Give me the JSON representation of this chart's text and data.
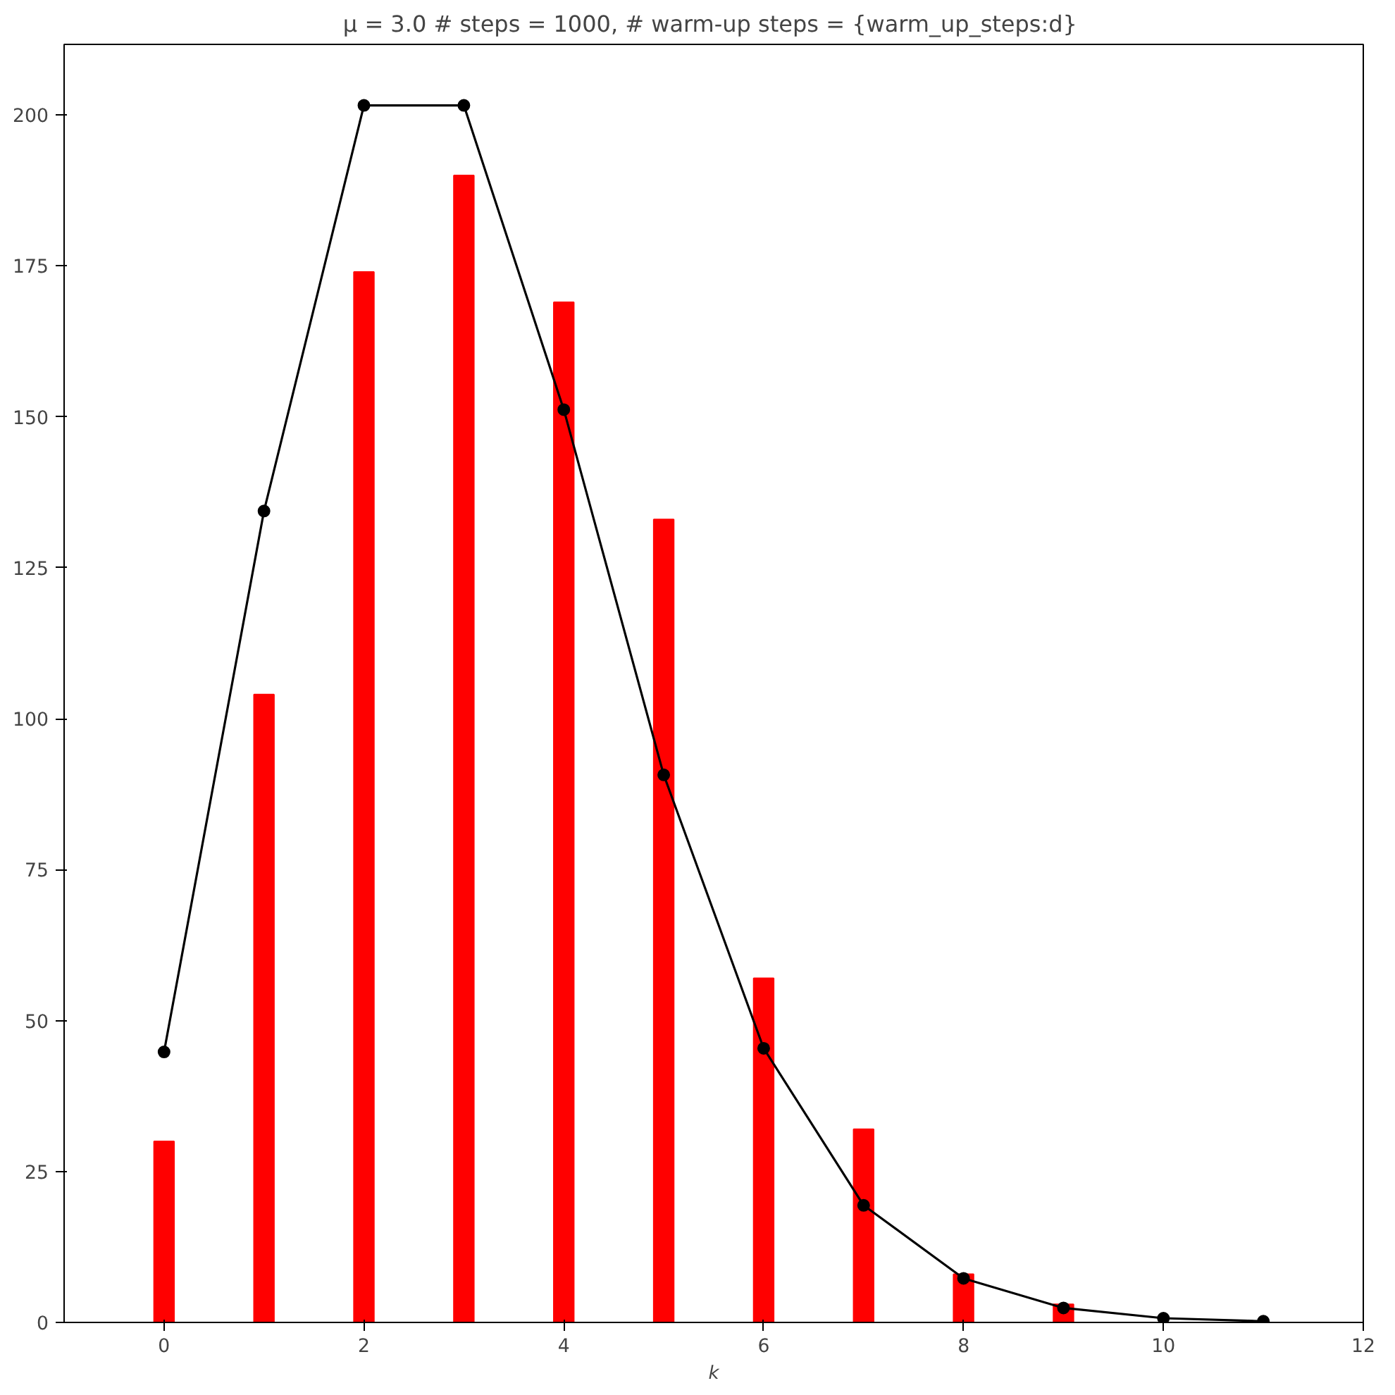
{
  "chart_data": {
    "type": "bar",
    "title": "μ = 3.0  # steps = 1000, # warm-up steps = {warm_up_steps:d}",
    "xlabel": "k",
    "series": [
      {
        "color": "#ff0000",
        "x": [
          0,
          1,
          2,
          3,
          4,
          5,
          6,
          7,
          8,
          9
        ],
        "values": [
          30,
          104,
          174,
          190,
          169,
          133,
          57,
          32,
          8,
          3
        ]
      },
      {
        "type": "line",
        "color": "#000000",
        "marker": "circle",
        "x": [
          0,
          1,
          2,
          3,
          4,
          5,
          6,
          7,
          8,
          9,
          10,
          11
        ],
        "values": [
          44.8,
          134.4,
          201.6,
          201.6,
          151.2,
          90.7,
          45.4,
          19.4,
          7.3,
          2.4,
          0.7,
          0.2
        ]
      }
    ],
    "xlim": [
      -1,
      12
    ],
    "ylim": [
      0,
      211.7
    ],
    "xticks": [
      0,
      2,
      4,
      6,
      8,
      10,
      12
    ],
    "yticks": [
      0,
      25,
      50,
      75,
      100,
      125,
      150,
      175,
      200
    ],
    "grid": false
  }
}
